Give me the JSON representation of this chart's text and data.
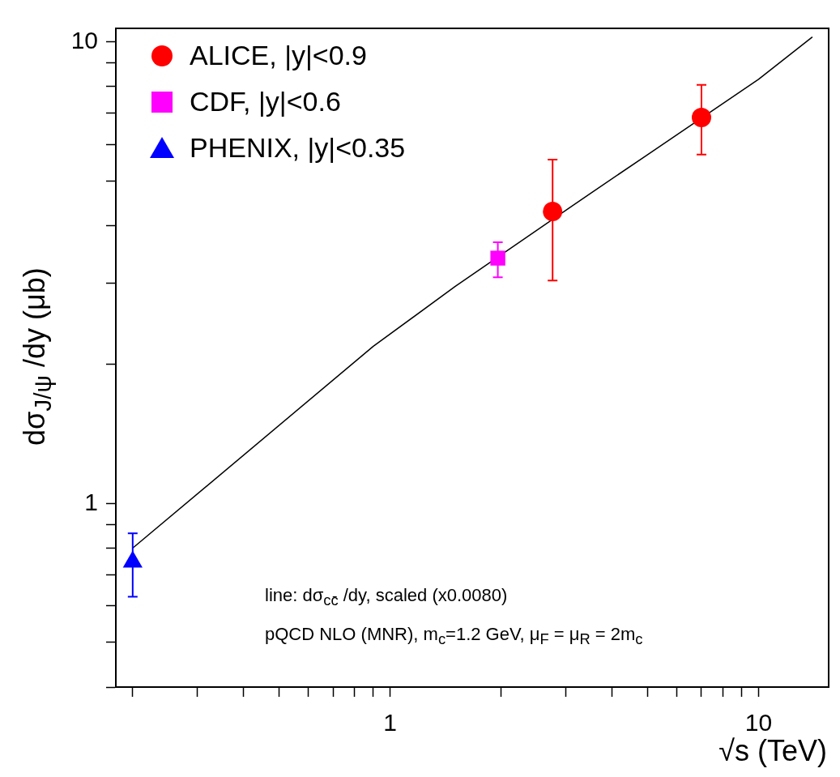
{
  "chart_data": {
    "type": "scatter",
    "xlabel": "√s (TeV)",
    "ylabel": "dσ$_{J/ψ}$ /dy (μb)",
    "log": "xy",
    "legend": "top left",
    "xlim": [
      0.18,
      15.5
    ],
    "ylim": [
      0.4,
      10.7
    ],
    "xticks": [
      {
        "value": 0.2,
        "label": null
      },
      {
        "value": 0.3,
        "label": null
      },
      {
        "value": 0.4,
        "label": null
      },
      {
        "value": 0.5,
        "label": null
      },
      {
        "value": 0.6,
        "label": null
      },
      {
        "value": 0.7,
        "label": null
      },
      {
        "value": 0.8,
        "label": null
      },
      {
        "value": 0.9,
        "label": null
      },
      1,
      {
        "value": 2,
        "label": null
      },
      {
        "value": 3,
        "label": null
      },
      {
        "value": 4,
        "label": null
      },
      {
        "value": 5,
        "label": null
      },
      {
        "value": 6,
        "label": null
      },
      {
        "value": 7,
        "label": null
      },
      {
        "value": 8,
        "label": null
      },
      {
        "value": 9,
        "label": null
      },
      10
    ],
    "yticks": [
      {
        "value": 0.4,
        "label": null
      },
      {
        "value": 0.5,
        "label": null
      },
      {
        "value": 0.6,
        "label": null
      },
      {
        "value": 0.7,
        "label": null
      },
      {
        "value": 0.8,
        "label": null
      },
      {
        "value": 0.9,
        "label": null
      },
      1,
      {
        "value": 2,
        "label": null
      },
      {
        "value": 3,
        "label": null
      },
      {
        "value": 4,
        "label": null
      },
      {
        "value": 5,
        "label": null
      },
      {
        "value": 6,
        "label": null
      },
      {
        "value": 7,
        "label": null
      },
      {
        "value": 8,
        "label": null
      },
      {
        "value": 9,
        "label": null
      },
      10
    ],
    "series": [
      {
        "name": "ALICE, |y|<0.9",
        "color": "#ff0000",
        "marker": "circle",
        "x": [
          2.76,
          7
        ],
        "values": [
          4.29,
          6.86
        ],
        "errors": [
          [
            3.04,
            5.56
          ],
          [
            5.7,
            8.07
          ]
        ]
      },
      {
        "name": "CDF, |y|<0.6",
        "color": "#ff00ff",
        "marker": "square",
        "x": [
          1.96
        ],
        "values": [
          3.4
        ],
        "errors": [
          [
            3.09,
            3.68
          ]
        ]
      },
      {
        "name": "PHENIX, |y|<0.35",
        "color": "#0000ff",
        "marker": "triangle",
        "x": [
          0.2
        ],
        "values": [
          0.747
        ],
        "errors": [
          [
            0.628,
            0.861
          ]
        ]
      },
      {
        "type": "line",
        "color": "#000000",
        "marker": "none",
        "line_style": "solid",
        "x": [
          0.2,
          0.9,
          1.5,
          3.5,
          5,
          10,
          14
        ],
        "values": [
          0.8,
          2.19,
          2.95,
          4.7,
          5.7,
          8.3,
          10.25
        ]
      }
    ],
    "annotations": [
      "line: dσ$_{cc̄}$ /dy, scaled (x0.0080)",
      "pQCD NLO (MNR), m$_{c}$=1.2 GeV,  μ$_{F}$ = μ$_{R}$ = 2m$_{c}$"
    ]
  }
}
